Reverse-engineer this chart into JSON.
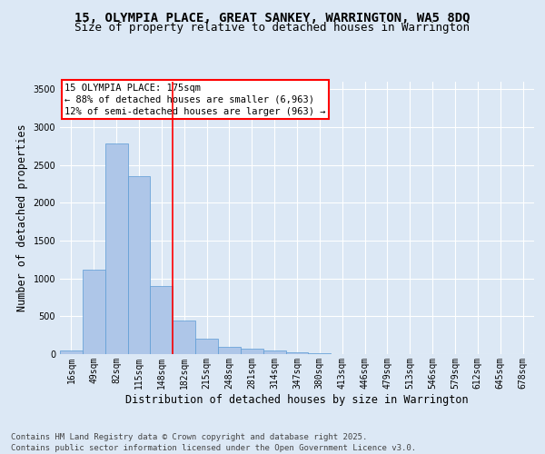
{
  "title_line1": "15, OLYMPIA PLACE, GREAT SANKEY, WARRINGTON, WA5 8DQ",
  "title_line2": "Size of property relative to detached houses in Warrington",
  "xlabel": "Distribution of detached houses by size in Warrington",
  "ylabel": "Number of detached properties",
  "categories": [
    "16sqm",
    "49sqm",
    "82sqm",
    "115sqm",
    "148sqm",
    "182sqm",
    "215sqm",
    "248sqm",
    "281sqm",
    "314sqm",
    "347sqm",
    "380sqm",
    "413sqm",
    "446sqm",
    "479sqm",
    "513sqm",
    "546sqm",
    "579sqm",
    "612sqm",
    "645sqm",
    "678sqm"
  ],
  "values": [
    50,
    1120,
    2780,
    2350,
    900,
    440,
    200,
    100,
    70,
    45,
    20,
    10,
    5,
    5,
    2,
    0,
    0,
    0,
    0,
    0,
    0
  ],
  "bar_color": "#aec6e8",
  "bar_edge_color": "#5b9bd5",
  "vline_index": 4.5,
  "vline_color": "red",
  "annotation_title": "15 OLYMPIA PLACE: 175sqm",
  "annotation_line1": "← 88% of detached houses are smaller (6,963)",
  "annotation_line2": "12% of semi-detached houses are larger (963) →",
  "annotation_box_color": "red",
  "ylim": [
    0,
    3600
  ],
  "yticks": [
    0,
    500,
    1000,
    1500,
    2000,
    2500,
    3000,
    3500
  ],
  "footer_line1": "Contains HM Land Registry data © Crown copyright and database right 2025.",
  "footer_line2": "Contains public sector information licensed under the Open Government Licence v3.0.",
  "background_color": "#dce8f5",
  "plot_bg_color": "#dce8f5",
  "grid_color": "#ffffff",
  "title_fontsize": 10,
  "subtitle_fontsize": 9,
  "axis_label_fontsize": 8.5,
  "tick_fontsize": 7,
  "annotation_fontsize": 7.5,
  "footer_fontsize": 6.5
}
